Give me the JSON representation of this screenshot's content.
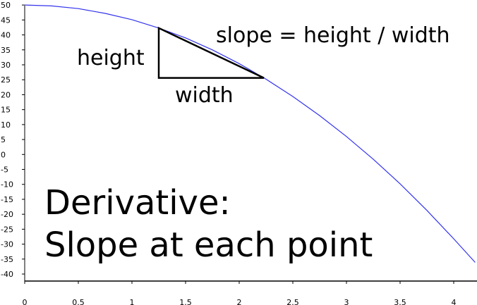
{
  "chart_data": {
    "type": "line",
    "title": "",
    "xlabel": "",
    "ylabel": "",
    "xlim": [
      0,
      4.2
    ],
    "ylim": [
      -40,
      50
    ],
    "x_ticks": [
      "0",
      "0.5",
      "1",
      "1.5",
      "2",
      "2.5",
      "3",
      "3.5",
      "4"
    ],
    "y_ticks": [
      "50",
      "45",
      "40",
      "35",
      "30",
      "25",
      "20",
      "15",
      "10",
      "5",
      "0",
      "-5",
      "-10",
      "-15",
      "-20",
      "-25",
      "-30",
      "-35",
      "-40"
    ],
    "grid": false,
    "series": [
      {
        "color": "#3333ee",
        "x": [
          0,
          0.25,
          0.5,
          0.75,
          1,
          1.25,
          1.5,
          1.75,
          2,
          2.25,
          2.5,
          2.75,
          3,
          3.25,
          3.5,
          3.75,
          4,
          4.2
        ],
        "y": [
          50,
          49.7,
          48.8,
          47.2,
          45.1,
          42.3,
          39.0,
          35.0,
          30.4,
          25.2,
          19.4,
          13.0,
          6.0,
          -1.6,
          -9.8,
          -18.7,
          -28.2,
          -36.1
        ]
      }
    ],
    "annotations": {
      "slope_formula": "slope = height / width",
      "height_label": "height",
      "width_label": "width",
      "triangle": {
        "x_left": 1.25,
        "x_right": 2.23,
        "y_top": 42.3,
        "y_bottom": 25.6
      }
    },
    "headline": [
      "Derivative:",
      "Slope at each point"
    ],
    "colors": {
      "curve": "#3333ee",
      "axes": "#000000",
      "triangle": "#000000"
    }
  }
}
